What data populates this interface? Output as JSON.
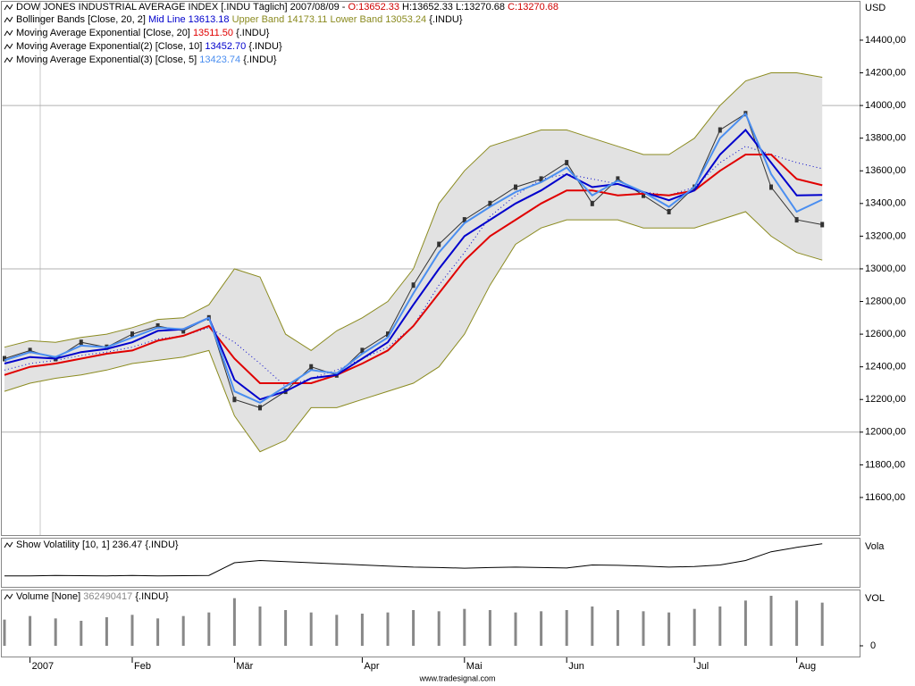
{
  "chart_data": [
    {
      "type": "line",
      "title": "DOW JONES INDUSTRIAL AVERAGE INDEX [.INDU  Täglich] 2007/08/09 -",
      "ohlc": [
        {
          "text": "O:13652.33",
          "color": "#d00000"
        },
        {
          "text": "H:13652.33 L:13270.68",
          "color": "#000000"
        },
        {
          "text": "C:13270.68",
          "color": "#d00000"
        }
      ],
      "currency": "USD",
      "categories": [
        null,
        "2007",
        null,
        null,
        null,
        "Feb",
        null,
        null,
        null,
        "Mär",
        null,
        null,
        null,
        null,
        "Apr",
        null,
        null,
        null,
        "Mai",
        null,
        null,
        null,
        "Jun",
        null,
        null,
        null,
        null,
        "Jul",
        null,
        null,
        null,
        "Aug",
        null
      ],
      "ylim": [
        11370,
        14635
      ],
      "yticks": [
        {
          "value": 11600,
          "label": "11600,00"
        },
        {
          "value": 11800,
          "label": "11800,00"
        },
        {
          "value": 12000,
          "label": "12000,00"
        },
        {
          "value": 12200,
          "label": "12200,00"
        },
        {
          "value": 12400,
          "label": "12400,00"
        },
        {
          "value": 12600,
          "label": "12600,00"
        },
        {
          "value": 12800,
          "label": "12800,00"
        },
        {
          "value": 13000,
          "label": "13000,00"
        },
        {
          "value": 13200,
          "label": "13200,00"
        },
        {
          "value": 13400,
          "label": "13400,00"
        },
        {
          "value": 13600,
          "label": "13600,00"
        },
        {
          "value": 13800,
          "label": "13800,00"
        },
        {
          "value": 14000,
          "label": "14000,00"
        },
        {
          "value": 14200,
          "label": "14200,00"
        },
        {
          "value": 14400,
          "label": "14400,00"
        }
      ],
      "grid_values": [
        12000,
        13000,
        14000
      ],
      "close": {
        "color": "#333333",
        "values": [
          12450,
          12500,
          12450,
          12550,
          12520,
          12600,
          12650,
          12620,
          12700,
          12200,
          12150,
          12250,
          12400,
          12350,
          12500,
          12600,
          12900,
          13150,
          13300,
          13400,
          13500,
          13550,
          13650,
          13400,
          13550,
          13450,
          13350,
          13500,
          13850,
          13950,
          13500,
          13300,
          13270.68
        ]
      },
      "band": {
        "name": "Bollinger Bands [Close, 20, 2]",
        "fill": "#e2e2e2",
        "suffix": "{.INDU}",
        "series": [
          {
            "name": "Mid Line",
            "color": "#0000cc",
            "value_label": "13613.18",
            "values": [
              12380,
              12420,
              12440,
              12470,
              12490,
              12520,
              12570,
              12590,
              12640,
              12550,
              12420,
              12280,
              12330,
              12380,
              12450,
              12520,
              12650,
              12900,
              13100,
              13320,
              13450,
              13550,
              13580,
              13550,
              13520,
              13470,
              13450,
              13500,
              13650,
              13750,
              13700,
              13650,
              13613.18
            ]
          },
          {
            "name": "Upper Band",
            "color": "#8b8b20",
            "value_label": "14173.11",
            "values": [
              12520,
              12560,
              12550,
              12580,
              12600,
              12640,
              12690,
              12700,
              12780,
              13000,
              12950,
              12600,
              12500,
              12620,
              12700,
              12800,
              13000,
              13400,
              13600,
              13750,
              13800,
              13850,
              13850,
              13800,
              13750,
              13700,
              13700,
              13800,
              14000,
              14150,
              14200,
              14200,
              14173.11
            ]
          },
          {
            "name": "Lower Band",
            "color": "#8b8b20",
            "value_label": "13053.24",
            "values": [
              12250,
              12300,
              12330,
              12350,
              12380,
              12420,
              12440,
              12460,
              12500,
              12100,
              11880,
              11950,
              12150,
              12150,
              12200,
              12250,
              12300,
              12400,
              12600,
              12900,
              13150,
              13250,
              13300,
              13300,
              13300,
              13250,
              13250,
              13250,
              13300,
              13350,
              13200,
              13100,
              13053.24
            ]
          }
        ]
      },
      "averages": [
        {
          "name": "Moving Average Exponential [Close, 20]",
          "color": "#e00000",
          "value_label": "13511.50",
          "suffix": "{.INDU}",
          "values": [
            12350,
            12400,
            12420,
            12450,
            12480,
            12500,
            12560,
            12590,
            12650,
            12450,
            12300,
            12300,
            12300,
            12350,
            12420,
            12500,
            12650,
            12850,
            13050,
            13200,
            13300,
            13400,
            13480,
            13480,
            13450,
            13460,
            13450,
            13480,
            13600,
            13700,
            13700,
            13550,
            13511.5
          ]
        },
        {
          "name": "Moving Average Exponential(2) [Close, 10]",
          "color": "#0000cc",
          "value_label": "13452.70",
          "suffix": "{.INDU}",
          "values": [
            12420,
            12460,
            12450,
            12490,
            12510,
            12550,
            12620,
            12630,
            12700,
            12320,
            12200,
            12250,
            12330,
            12350,
            12450,
            12550,
            12780,
            13000,
            13200,
            13300,
            13400,
            13480,
            13580,
            13500,
            13520,
            13470,
            13420,
            13480,
            13700,
            13850,
            13650,
            13450,
            13452.7
          ]
        },
        {
          "name": "Moving Average Exponential(3) [Close, 5]",
          "color": "#4a8ef0",
          "value_label": "13423.74",
          "suffix": "{.INDU}",
          "values": [
            12440,
            12490,
            12460,
            12530,
            12520,
            12580,
            12640,
            12630,
            12700,
            12250,
            12180,
            12280,
            12380,
            12360,
            12480,
            12580,
            12850,
            13100,
            13280,
            13380,
            13470,
            13530,
            13620,
            13450,
            13540,
            13470,
            13380,
            13500,
            13800,
            13950,
            13580,
            13350,
            13423.74
          ]
        }
      ]
    },
    {
      "type": "line",
      "title": "Show Volatility [10, 1] 236.47 {.INDU}",
      "axis_label": "Vola",
      "color": "#000000",
      "ylim": [
        40,
        260
      ],
      "values": [
        90,
        90,
        92,
        91,
        90,
        92,
        90,
        91,
        92,
        150,
        160,
        155,
        150,
        145,
        140,
        135,
        130,
        128,
        125,
        128,
        130,
        128,
        126,
        140,
        138,
        135,
        130,
        133,
        140,
        160,
        200,
        220,
        236.47
      ]
    },
    {
      "type": "bar",
      "title": "Volume [None]",
      "value_label": "362490417",
      "suffix": "{.INDU}",
      "axis_label": "VOL",
      "color": "#888888",
      "ylim": [
        0,
        450000000
      ],
      "yticks": [
        0
      ],
      "values": [
        220000000,
        250000000,
        230000000,
        210000000,
        240000000,
        260000000,
        230000000,
        250000000,
        280000000,
        400000000,
        330000000,
        300000000,
        280000000,
        260000000,
        270000000,
        280000000,
        300000000,
        290000000,
        310000000,
        300000000,
        280000000,
        290000000,
        300000000,
        330000000,
        300000000,
        290000000,
        280000000,
        310000000,
        330000000,
        380000000,
        420000000,
        380000000,
        362490417
      ]
    }
  ],
  "footer": "www.tradesignal.com"
}
